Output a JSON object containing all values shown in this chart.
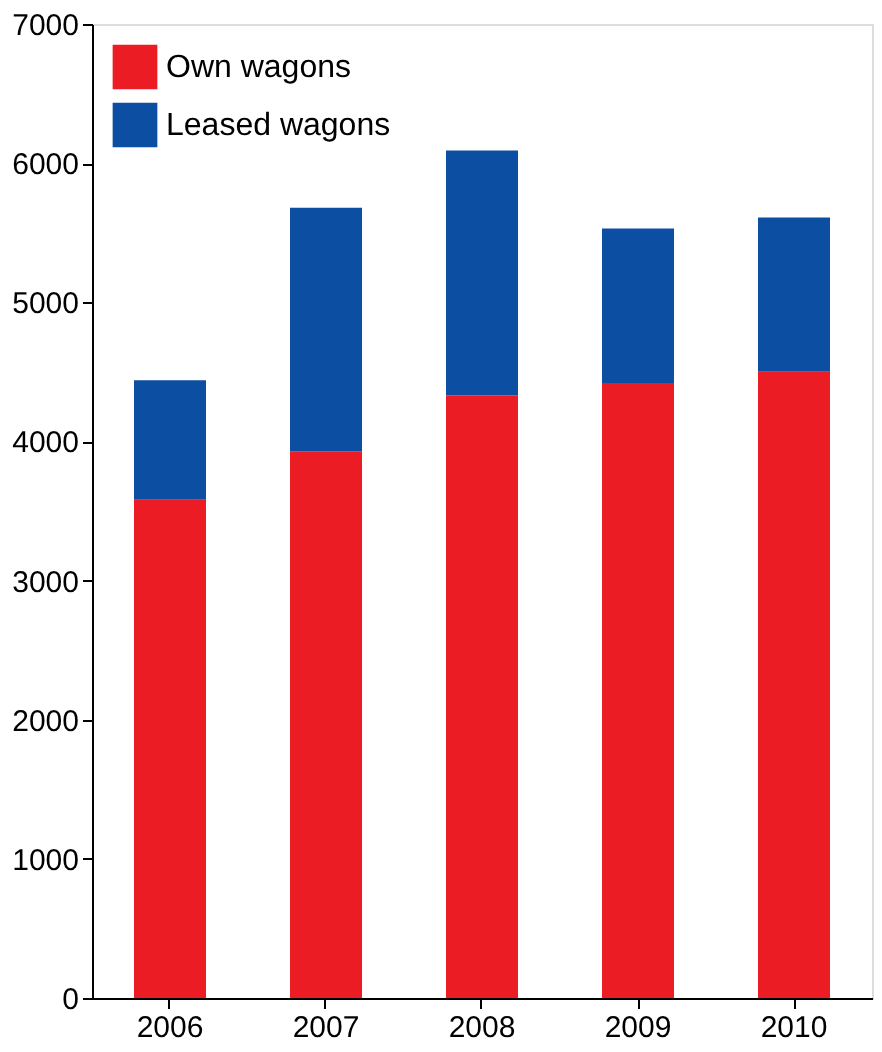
{
  "chart_data": {
    "type": "bar",
    "stacked": true,
    "categories": [
      "2006",
      "2007",
      "2008",
      "2009",
      "2010"
    ],
    "series": [
      {
        "name": "Own wagons",
        "color": "#ec1c24",
        "values": [
          3580,
          3930,
          4330,
          4420,
          4500
        ]
      },
      {
        "name": "Leased wagons",
        "color": "#0b4ea2",
        "values": [
          860,
          1750,
          1760,
          1110,
          1110
        ]
      }
    ],
    "ylim": [
      0,
      7000
    ],
    "yticks": [
      0,
      1000,
      2000,
      3000,
      4000,
      5000,
      6000,
      7000
    ],
    "grid": false,
    "legend": "top left"
  }
}
